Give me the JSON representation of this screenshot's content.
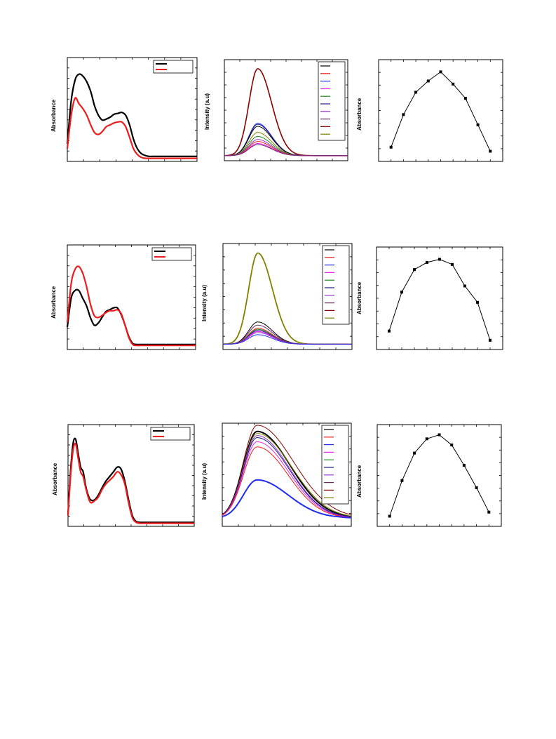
{
  "colors": {
    "black": "#000000",
    "red": "#ee1c1c",
    "blue": "#1f2cf0",
    "magenta": "#ee22ee",
    "green": "#1f8a1f",
    "navy": "#1a1a8c",
    "purple": "#9933cc",
    "plum": "#6a2a6a",
    "darkred": "#8b0000",
    "olive": "#808000"
  },
  "chart_data": [
    {
      "id": "uv1",
      "type": "line",
      "ylabel": "Absorbance",
      "grid": false,
      "legend": "top-right",
      "xlim": [
        0,
        100
      ],
      "ylim": [
        0,
        100
      ],
      "series": [
        {
          "color": "black",
          "width": 2.2,
          "x": [
            0,
            3,
            6,
            9,
            12,
            15,
            18,
            21,
            24,
            27,
            30,
            33,
            36,
            39,
            42,
            45,
            48,
            51,
            54,
            57,
            60,
            63,
            66,
            69,
            72,
            75,
            78,
            81,
            84,
            87,
            90,
            93,
            96,
            100
          ],
          "y": [
            15,
            60,
            82,
            88,
            86,
            80,
            70,
            55,
            45,
            40,
            41,
            43,
            46,
            47,
            48,
            45,
            35,
            20,
            10,
            5,
            3,
            2,
            2,
            2,
            2,
            2,
            2,
            2,
            2,
            2,
            2,
            2,
            2,
            2
          ]
        },
        {
          "color": "red",
          "width": 2.2,
          "x": [
            0,
            3,
            6,
            9,
            12,
            15,
            18,
            21,
            24,
            27,
            30,
            33,
            36,
            39,
            42,
            45,
            48,
            51,
            54,
            57,
            60,
            63,
            66,
            69,
            72,
            75,
            78,
            81,
            84,
            87,
            90,
            93,
            96,
            100
          ],
          "y": [
            10,
            45,
            63,
            57,
            52,
            45,
            35,
            27,
            25,
            28,
            33,
            35,
            37,
            38,
            38,
            33,
            22,
            10,
            4,
            1,
            0,
            0,
            0,
            0,
            0,
            0,
            0,
            0,
            0,
            0,
            0,
            0,
            0,
            0
          ]
        }
      ],
      "legend_count": 2
    },
    {
      "id": "fl1",
      "type": "line",
      "ylabel": "Intensity (a.u)",
      "grid": false,
      "legend": "top-right",
      "xlim": [
        0,
        100
      ],
      "ylim": [
        0,
        100
      ],
      "peaks": [
        {
          "color": "darkred",
          "width": 1.6,
          "amp": 86
        },
        {
          "color": "blue",
          "width": 1.0,
          "amp": 32
        },
        {
          "color": "navy",
          "width": 1.0,
          "amp": 31
        },
        {
          "color": "black",
          "width": 1.0,
          "amp": 29
        },
        {
          "color": "olive",
          "width": 1.0,
          "amp": 23
        },
        {
          "color": "green",
          "width": 1.0,
          "amp": 19
        },
        {
          "color": "purple",
          "width": 1.0,
          "amp": 16
        },
        {
          "color": "red",
          "width": 1.0,
          "amp": 14
        },
        {
          "color": "magenta",
          "width": 1.0,
          "amp": 12
        },
        {
          "color": "plum",
          "width": 1.0,
          "amp": 11
        }
      ],
      "legend_colors": [
        "black",
        "red",
        "blue",
        "magenta",
        "green",
        "navy",
        "purple",
        "plum",
        "darkred",
        "olive"
      ]
    },
    {
      "id": "job1",
      "type": "line",
      "ylabel": "Absorbance",
      "grid": false,
      "xlim": [
        0,
        10
      ],
      "ylim": [
        0,
        100
      ],
      "x": [
        1,
        2,
        3,
        4,
        5,
        6,
        7,
        8,
        9
      ],
      "y": [
        14,
        46,
        68,
        79,
        88,
        76,
        62,
        36,
        10
      ]
    },
    {
      "id": "uv2",
      "type": "line",
      "ylabel": "Absorbance",
      "grid": false,
      "legend": "top-right",
      "xlim": [
        0,
        100
      ],
      "ylim": [
        0,
        100
      ],
      "series": [
        {
          "color": "black",
          "width": 2.2,
          "x": [
            0,
            3,
            6,
            9,
            12,
            15,
            18,
            21,
            24,
            27,
            30,
            33,
            36,
            39,
            42,
            45,
            48,
            51,
            54,
            57,
            60,
            63,
            66,
            69,
            72,
            75,
            78,
            81,
            84,
            87,
            90,
            93,
            96,
            100
          ],
          "y": [
            20,
            50,
            58,
            58,
            50,
            42,
            30,
            22,
            24,
            30,
            36,
            38,
            40,
            40,
            33,
            22,
            10,
            3,
            2,
            2,
            2,
            2,
            2,
            2,
            2,
            2,
            2,
            2,
            2,
            2,
            2,
            2,
            2,
            2
          ]
        },
        {
          "color": "red",
          "width": 2.2,
          "x": [
            0,
            3,
            6,
            9,
            12,
            15,
            18,
            21,
            24,
            27,
            30,
            33,
            36,
            39,
            42,
            45,
            48,
            51,
            54,
            57,
            60,
            63,
            66,
            69,
            72,
            75,
            78,
            81,
            84,
            87,
            90,
            93,
            96,
            100
          ],
          "y": [
            25,
            65,
            80,
            83,
            76,
            62,
            44,
            32,
            30,
            32,
            35,
            37,
            37,
            38,
            34,
            22,
            9,
            2,
            1,
            1,
            1,
            1,
            1,
            1,
            1,
            1,
            1,
            1,
            1,
            1,
            1,
            1,
            1,
            1
          ]
        }
      ],
      "legend_count": 2
    },
    {
      "id": "fl2",
      "type": "line",
      "ylabel": "Intensity (a.u)",
      "grid": false,
      "legend": "top-right",
      "xlim": [
        0,
        100
      ],
      "ylim": [
        0,
        100
      ],
      "peaks": [
        {
          "color": "olive",
          "width": 1.8,
          "amp": 86
        },
        {
          "color": "black",
          "width": 1.0,
          "amp": 21
        },
        {
          "color": "plum",
          "width": 1.0,
          "amp": 18
        },
        {
          "color": "red",
          "width": 1.0,
          "amp": 15
        },
        {
          "color": "green",
          "width": 1.0,
          "amp": 14
        },
        {
          "color": "navy",
          "width": 1.0,
          "amp": 13
        },
        {
          "color": "magenta",
          "width": 1.0,
          "amp": 12
        },
        {
          "color": "purple",
          "width": 1.0,
          "amp": 11
        },
        {
          "color": "blue",
          "width": 1.0,
          "amp": 9
        }
      ],
      "legend_colors": [
        "black",
        "red",
        "blue",
        "magenta",
        "green",
        "navy",
        "purple",
        "plum",
        "darkred",
        "olive"
      ]
    },
    {
      "id": "job2",
      "type": "line",
      "ylabel": "Absorbance",
      "grid": false,
      "xlim": [
        0,
        10
      ],
      "ylim": [
        0,
        100
      ],
      "x": [
        1,
        2,
        3,
        4,
        5,
        6,
        7,
        8,
        9
      ],
      "y": [
        18,
        56,
        78,
        85,
        88,
        83,
        62,
        46,
        9
      ]
    },
    {
      "id": "uv3",
      "type": "line",
      "ylabel": "Absorbance",
      "grid": false,
      "legend": "top-right",
      "xlim": [
        0,
        100
      ],
      "ylim": [
        0,
        100
      ],
      "series": [
        {
          "color": "black",
          "width": 2.2,
          "x": [
            0,
            2,
            4,
            6,
            8,
            10,
            12,
            14,
            16,
            18,
            21,
            24,
            27,
            30,
            33,
            36,
            39,
            42,
            45,
            48,
            51,
            54,
            57,
            60,
            63,
            66,
            69,
            72,
            75,
            78,
            81,
            84,
            87,
            90,
            93,
            96,
            100
          ],
          "y": [
            10,
            55,
            85,
            90,
            75,
            60,
            55,
            40,
            30,
            25,
            25,
            30,
            38,
            45,
            50,
            55,
            60,
            58,
            45,
            25,
            8,
            2,
            1,
            1,
            1,
            1,
            1,
            1,
            1,
            1,
            1,
            1,
            1,
            1,
            1,
            1,
            1
          ]
        },
        {
          "color": "red",
          "width": 2.2,
          "x": [
            0,
            2,
            4,
            6,
            8,
            10,
            12,
            14,
            16,
            18,
            21,
            24,
            27,
            30,
            33,
            36,
            39,
            42,
            45,
            48,
            51,
            54,
            57,
            60,
            63,
            66,
            69,
            72,
            75,
            78,
            81,
            84,
            87,
            90,
            93,
            96,
            100
          ],
          "y": [
            8,
            50,
            78,
            85,
            70,
            55,
            50,
            38,
            28,
            22,
            24,
            28,
            36,
            42,
            46,
            50,
            55,
            52,
            42,
            22,
            6,
            1,
            0,
            0,
            0,
            0,
            0,
            0,
            0,
            0,
            0,
            0,
            0,
            0,
            0,
            0,
            0
          ]
        }
      ],
      "legend_count": 2
    },
    {
      "id": "fl3",
      "type": "line",
      "ylabel": "Intensity (a.u)",
      "grid": false,
      "legend": "top-right",
      "xlim": [
        0,
        100
      ],
      "ylim": [
        0,
        100
      ],
      "peaks": [
        {
          "color": "darkred",
          "width": 1.0,
          "amp": 90,
          "tail": 40
        },
        {
          "color": "black",
          "width": 2.0,
          "amp": 84,
          "tail": 28
        },
        {
          "color": "olive",
          "width": 1.0,
          "amp": 82,
          "tail": 33
        },
        {
          "color": "purple",
          "width": 1.0,
          "amp": 80,
          "tail": 25
        },
        {
          "color": "navy",
          "width": 1.0,
          "amp": 78,
          "tail": 24
        },
        {
          "color": "magenta",
          "width": 1.0,
          "amp": 74,
          "tail": 22
        },
        {
          "color": "red",
          "width": 1.0,
          "amp": 69,
          "tail": 20
        },
        {
          "color": "blue",
          "width": 2.0,
          "amp": 37,
          "tail": 20
        }
      ],
      "legend_colors": [
        "black",
        "red",
        "blue",
        "magenta",
        "green",
        "navy",
        "purple",
        "plum",
        "darkred",
        "olive"
      ]
    },
    {
      "id": "job3",
      "type": "line",
      "ylabel": "Absorbance",
      "grid": false,
      "xlim": [
        0,
        10
      ],
      "ylim": [
        0,
        100
      ],
      "x": [
        1,
        2,
        3,
        4,
        5,
        6,
        7,
        8,
        9
      ],
      "y": [
        10,
        45,
        72,
        86,
        90,
        80,
        60,
        38,
        14
      ]
    }
  ]
}
